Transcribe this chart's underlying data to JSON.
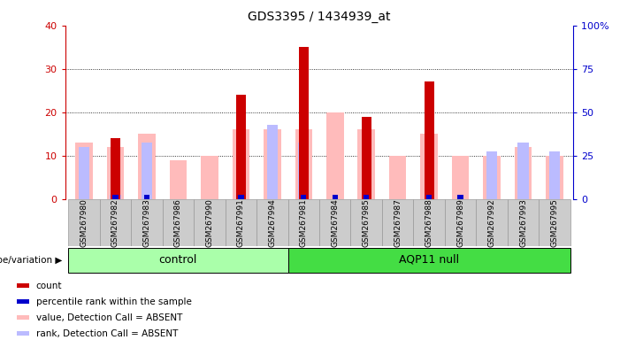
{
  "title": "GDS3395 / 1434939_at",
  "samples": [
    "GSM267980",
    "GSM267982",
    "GSM267983",
    "GSM267986",
    "GSM267990",
    "GSM267991",
    "GSM267994",
    "GSM267981",
    "GSM267984",
    "GSM267985",
    "GSM267987",
    "GSM267988",
    "GSM267989",
    "GSM267992",
    "GSM267993",
    "GSM267995"
  ],
  "n_control": 7,
  "n_aqp": 9,
  "red_bars": [
    0,
    14,
    0,
    0,
    0,
    24,
    0,
    35,
    0,
    19,
    0,
    27,
    0,
    0,
    0,
    0
  ],
  "blue_bars": [
    0,
    1,
    1,
    0,
    0,
    1,
    0,
    1,
    1,
    1,
    0,
    1,
    1,
    0,
    0,
    0
  ],
  "pink_bars": [
    13,
    12,
    15,
    9,
    10,
    16,
    16,
    16,
    20,
    16,
    10,
    15,
    10,
    10,
    12,
    10
  ],
  "lightblue_bars": [
    12,
    1,
    13,
    0,
    0,
    0,
    17,
    13,
    0,
    0,
    0,
    0,
    0,
    11,
    13,
    11
  ],
  "ylim_left": [
    0,
    40
  ],
  "ylim_right": [
    0,
    100
  ],
  "yticks_left": [
    0,
    10,
    20,
    30,
    40
  ],
  "yticks_right": [
    0,
    25,
    50,
    75,
    100
  ],
  "left_color": "#cc0000",
  "right_color": "#0000cc",
  "group_label": "genotype/variation",
  "group1_label": "control",
  "group2_label": "AQP11 null",
  "group1_color": "#aaffaa",
  "group2_color": "#44dd44",
  "legend_items": [
    "count",
    "percentile rank within the sample",
    "value, Detection Call = ABSENT",
    "rank, Detection Call = ABSENT"
  ],
  "legend_colors": [
    "#cc0000",
    "#0000cc",
    "#ffbbbb",
    "#bbbbff"
  ],
  "sample_box_color": "#cccccc",
  "sample_box_edge": "#999999"
}
